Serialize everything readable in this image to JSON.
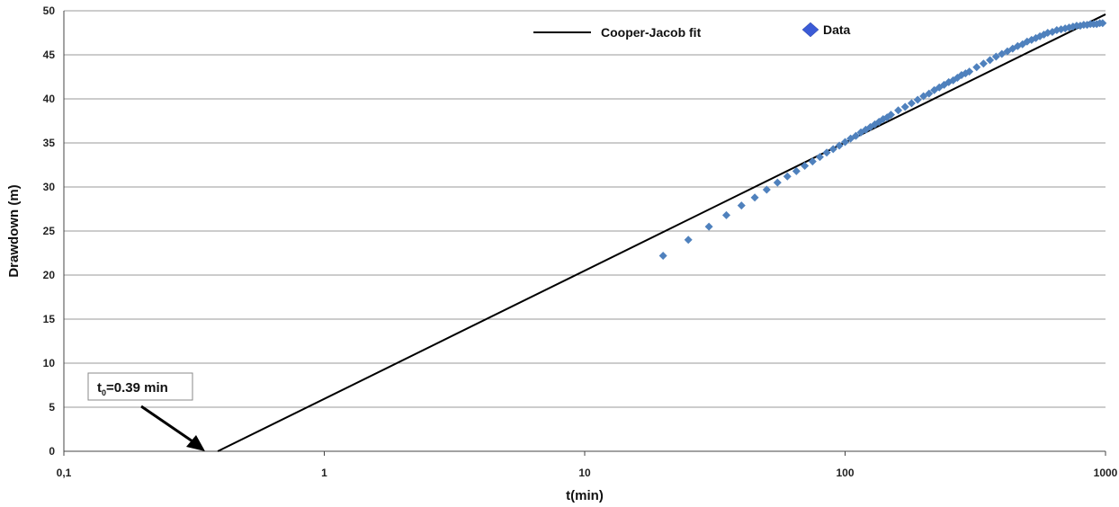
{
  "chart_data": {
    "type": "scatter",
    "title": "",
    "xlabel": "t(min)",
    "ylabel": "Drawdown (m)",
    "x_scale": "log",
    "xlim": [
      0.1,
      1000
    ],
    "ylim": [
      0,
      50
    ],
    "x_ticks": [
      "0,1",
      "1",
      "10",
      "100",
      "1000"
    ],
    "y_ticks": [
      "0",
      "5",
      "10",
      "15",
      "20",
      "25",
      "30",
      "35",
      "40",
      "45",
      "50"
    ],
    "grid": "horizontal",
    "legend_position": "top-center",
    "colors": {
      "fit": "#000000",
      "data": "#4f81bd",
      "legend_marker": "#3b5bd6"
    },
    "series": [
      {
        "name": "Cooper-Jacob fit",
        "kind": "line",
        "x": [
          0.39,
          1000
        ],
        "y": [
          0,
          49.6
        ]
      },
      {
        "name": "Data",
        "kind": "markers",
        "marker": "diamond",
        "x": [
          20,
          25,
          30,
          35,
          40,
          45,
          50,
          55,
          60,
          65,
          70,
          75,
          80,
          85,
          90,
          95,
          100,
          105,
          110,
          115,
          120,
          125,
          130,
          135,
          140,
          145,
          150,
          160,
          170,
          180,
          190,
          200,
          210,
          220,
          230,
          240,
          250,
          260,
          270,
          280,
          290,
          300,
          320,
          340,
          360,
          380,
          400,
          420,
          440,
          460,
          480,
          500,
          520,
          540,
          560,
          580,
          600,
          625,
          650,
          675,
          700,
          725,
          750,
          775,
          800,
          825,
          850,
          875,
          900,
          925,
          950,
          975
        ],
        "y": [
          22.2,
          24.0,
          25.5,
          26.8,
          27.9,
          28.8,
          29.7,
          30.5,
          31.2,
          31.8,
          32.4,
          32.9,
          33.4,
          33.9,
          34.3,
          34.7,
          35.1,
          35.5,
          35.8,
          36.2,
          36.5,
          36.8,
          37.1,
          37.4,
          37.7,
          37.9,
          38.2,
          38.7,
          39.1,
          39.5,
          39.9,
          40.3,
          40.6,
          41.0,
          41.3,
          41.6,
          41.9,
          42.1,
          42.4,
          42.7,
          42.9,
          43.1,
          43.6,
          44.0,
          44.4,
          44.8,
          45.1,
          45.4,
          45.7,
          46.0,
          46.2,
          46.5,
          46.7,
          46.9,
          47.1,
          47.3,
          47.5,
          47.6,
          47.8,
          47.9,
          48.0,
          48.1,
          48.2,
          48.3,
          48.3,
          48.4,
          48.4,
          48.5,
          48.5,
          48.5,
          48.6,
          48.6
        ]
      }
    ],
    "annotations": [
      {
        "text": "t",
        "subscript": "0",
        "text_after": "=0.39 min",
        "points_to_x": 0.39,
        "points_to_y": 0
      }
    ]
  }
}
